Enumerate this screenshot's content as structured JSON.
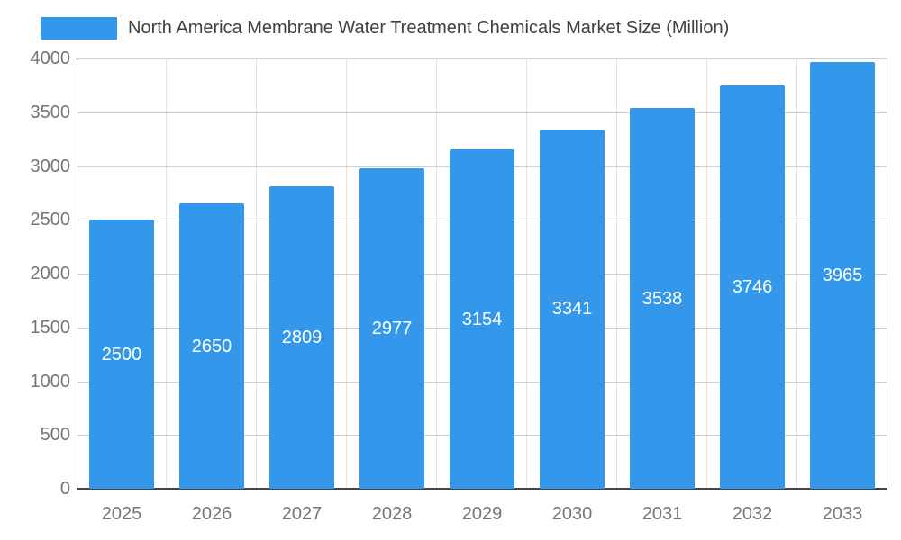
{
  "chart_data": {
    "type": "bar",
    "title": "North America Membrane Water Treatment Chemicals Market Size (Million)",
    "legend_entries": [
      "North America Membrane Water Treatment Chemicals Market Size (Million)"
    ],
    "legend_position": "top",
    "categories": [
      "2025",
      "2026",
      "2027",
      "2028",
      "2029",
      "2030",
      "2031",
      "2032",
      "2033"
    ],
    "values": [
      2500,
      2650,
      2809,
      2977,
      3154,
      3341,
      3538,
      3746,
      3965
    ],
    "value_labels": [
      "2500",
      "2650",
      "2809",
      "2977",
      "3154",
      "3341",
      "3538",
      "3746",
      "3965"
    ],
    "xlabel": "",
    "ylabel": "",
    "ylim": [
      0,
      4000
    ],
    "yticks": [
      0,
      500,
      1000,
      1500,
      2000,
      2500,
      3000,
      3500,
      4000
    ],
    "grid": true,
    "colors": {
      "bar": "#3398EC",
      "value_label": "#FFFFFF",
      "axis_label": "#757575",
      "title": "#404040",
      "gridline": "#CCCCCC",
      "background": "#FFFFFF"
    }
  }
}
